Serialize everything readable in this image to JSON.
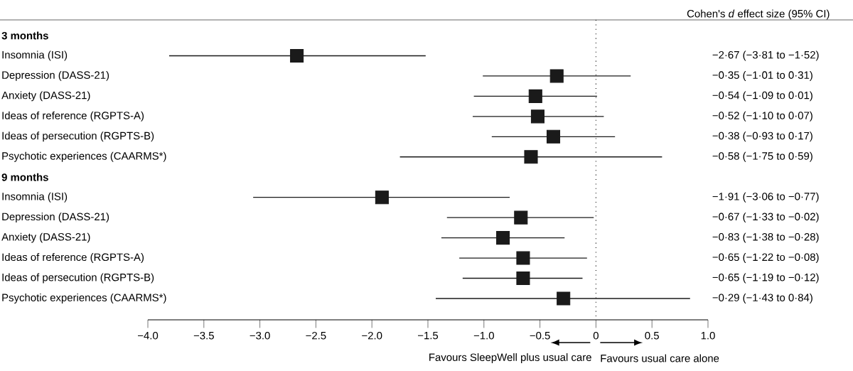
{
  "chart_data": {
    "type": "scatter",
    "orientation": "horizontal",
    "categories": [
      "3 months",
      "Insomnia (ISI)",
      "Depression (DASS-21)",
      "Anxiety (DASS-21)",
      "Ideas of reference (RGPTS-A)",
      "Ideas of persecution (RGPTS-B)",
      "Psychotic experiences (CAARMS*)",
      "9 months",
      "Insomnia (ISI)",
      "Depression (DASS-21)",
      "Anxiety (DASS-21)",
      "Ideas of reference (RGPTS-A)",
      "Ideas of persecution (RGPTS-B)",
      "Psychotic experiences (CAARMS*)"
    ],
    "series": [
      {
        "color": "#1a1a1a",
        "values": [
          null,
          -2.67,
          -0.35,
          -0.54,
          -0.52,
          -0.38,
          -0.58,
          null,
          -1.91,
          -0.67,
          -0.83,
          -0.65,
          -0.65,
          -0.29
        ],
        "errors": [
          null,
          [
            -3.81,
            -1.52
          ],
          [
            -1.01,
            0.31
          ],
          [
            -1.09,
            0.01
          ],
          [
            -1.1,
            0.07
          ],
          [
            -0.93,
            0.17
          ],
          [
            -1.75,
            0.59
          ],
          null,
          [
            -3.06,
            -0.77
          ],
          [
            -1.33,
            -0.02
          ],
          [
            -1.38,
            -0.28
          ],
          [
            -1.22,
            -0.08
          ],
          [
            -1.19,
            -0.12
          ],
          [
            -1.43,
            0.84
          ]
        ]
      }
    ],
    "xlim": [
      -4,
      1
    ],
    "xticks": [
      {
        "value": -4,
        "label": "−4.0"
      },
      {
        "value": -3.5,
        "label": "−3.5"
      },
      {
        "value": -3,
        "label": "−3.0"
      },
      {
        "value": -2.5,
        "label": "−2.5"
      },
      {
        "value": -2,
        "label": "−2.0"
      },
      {
        "value": -1.5,
        "label": "−1.5"
      },
      {
        "value": -1,
        "label": "−1.0"
      },
      {
        "value": -0.5,
        "label": "−0.5"
      },
      0,
      0.5,
      {
        "value": 1,
        "label": "1.0"
      }
    ],
    "ref_lines": [
      {
        "axis": "x",
        "value": 0,
        "line_style": "dotted"
      }
    ],
    "annotations": [
      "Cohen's *d* effect size (95% CI)",
      "Favours SleepWell plus usual care",
      "Favours usual care alone",
      "−2·67 (−3·81 to −1·52)",
      "−0·35 (−1·01 to 0·31)",
      "−0·54 (−1·09 to 0·01)",
      "−0·52 (−1·10 to 0·07)",
      "−0·38 (−0·93 to 0·17)",
      "−0·58 (−1·75 to 0·59)",
      "−1·91 (−3·06 to −0·77)",
      "−0·67 (−1·33 to −0·02)",
      "−0·83 (−1·38 to −0·28)",
      "−0·65 (−1·22 to −0·08)",
      "−0·65 (−1·19 to −0·12)",
      "−0·29 (−1·43 to 0·84)"
    ],
    "marker": "square"
  }
}
